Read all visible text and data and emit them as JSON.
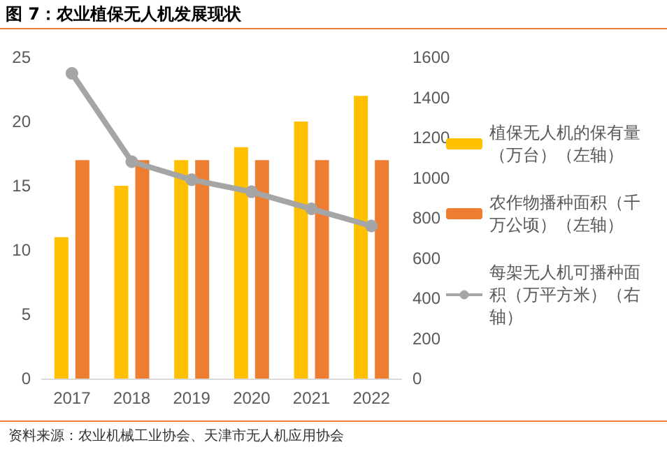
{
  "chart_data": {
    "type": "bar",
    "title": "图 7：农业植保无人机发展现状",
    "categories": [
      "2017",
      "2018",
      "2019",
      "2020",
      "2021",
      "2022"
    ],
    "series": [
      {
        "name": "植保无人机的保有量（万台）（左轴）",
        "color": "#ffc000",
        "values": [
          11,
          15,
          17,
          18,
          20,
          22
        ]
      },
      {
        "name": "农作物播种面积（千万公顷）（左轴）",
        "color": "#ed7d31",
        "values": [
          17,
          17,
          17,
          17,
          17,
          17
        ]
      },
      {
        "name": "每架无人机可播种面积（万平方米）（右轴）",
        "type": "line",
        "axis": "y2",
        "color": "#a5a5a5",
        "marker": "circle",
        "values": [
          1520,
          1080,
          990,
          930,
          845,
          760
        ]
      }
    ],
    "ylim": [
      0,
      25
    ],
    "yticks": [
      0,
      5,
      10,
      15,
      20,
      25
    ],
    "y2lim": [
      0,
      1600
    ],
    "y2ticks": [
      0,
      200,
      400,
      600,
      800,
      1000,
      1200,
      1400,
      1600
    ],
    "grid": false,
    "legend": "right",
    "annotations": [
      "资料来源：农业机械工业协会、天津市无人机应用协会"
    ]
  }
}
